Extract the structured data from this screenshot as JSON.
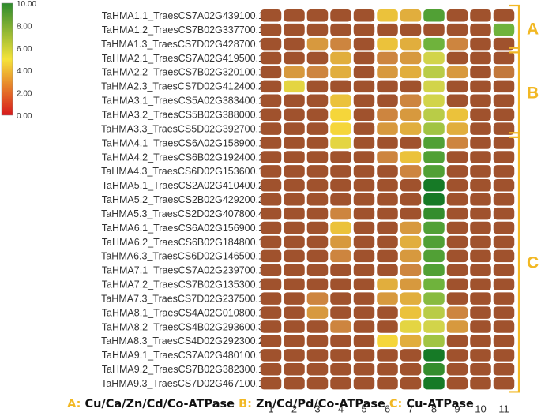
{
  "chart_data": {
    "type": "heatmap",
    "rows": [
      "TaHMA1.1_TraesCS7A02G439100.1",
      "TaHMA1.2_TraesCS7B02G337700.1",
      "TaHMA1.3_TraesCS7D02G428700.1",
      "TaHMA2.1_TraesCS7A02G419500.1",
      "TaHMA2.2_TraesCS7B02G320100.1",
      "TaHMA2.3_TraesCS7D02G412400.2",
      "TaHMA3.1_TraesCS5A02G383400.1",
      "TaHMA3.2_TraesCS5B02G388000.1",
      "TaHMA3.3_TraesCS5D02G392700.1",
      "TaHMA4.1_TraesCS6A02G158900.1",
      "TaHMA4.2_TraesCS6B02G192400.1",
      "TaHMA4.3_TraesCS6D02G153600.1",
      "TaHMA5.1_TraesCS2A02G410400.2",
      "TaHMA5.2_TraesCS2B02G429200.2",
      "TaHMA5.3_TraesCS2D02G407800.4",
      "TaHMA6.1_TraesCS6A02G156900.1",
      "TaHMA6.2_TraesCS6B02G184800.1",
      "TaHMA6.3_TraesCS6D02G146500.1",
      "TaHMA7.1_TraesCS7A02G239700.1",
      "TaHMA7.2_TraesCS7B02G135300.1",
      "TaHMA7.3_TraesCS7D02G237500.1",
      "TaHMA8.1_TraesCS4A02G010800.1",
      "TaHMA8.2_TraesCS4B02G293600.3",
      "TaHMA8.3_TraesCS4D02G292300.2",
      "TaHMA9.1_TraesCS7A02G480100.1",
      "TaHMA9.2_TraesCS7B02G382300.1",
      "TaHMA9.3_TraesCS7D02G467100.1"
    ],
    "columns": [
      "1",
      "2",
      "3",
      "4",
      "5",
      "6",
      "7",
      "8",
      "9",
      "10",
      "11"
    ],
    "values": [
      [
        1.0,
        1.0,
        1.0,
        1.0,
        1.0,
        4.5,
        4.0,
        8.5,
        1.0,
        1.0,
        1.0
      ],
      [
        1.0,
        1.0,
        1.0,
        1.0,
        1.0,
        1.0,
        1.0,
        1.0,
        1.0,
        1.0,
        8.0
      ],
      [
        1.0,
        1.0,
        3.5,
        3.0,
        1.0,
        4.5,
        4.0,
        8.0,
        3.0,
        1.0,
        1.0
      ],
      [
        1.0,
        1.0,
        1.0,
        4.0,
        1.0,
        3.0,
        3.5,
        6.0,
        1.0,
        1.0,
        1.0
      ],
      [
        1.0,
        3.5,
        3.0,
        4.0,
        1.0,
        3.5,
        4.0,
        6.5,
        3.5,
        1.0,
        2.5
      ],
      [
        1.0,
        5.5,
        1.0,
        1.0,
        1.0,
        1.0,
        1.0,
        6.0,
        1.0,
        1.0,
        1.0
      ],
      [
        1.0,
        1.0,
        1.0,
        4.5,
        1.0,
        1.0,
        3.0,
        6.0,
        1.0,
        1.0,
        1.0
      ],
      [
        1.0,
        1.0,
        1.0,
        5.0,
        1.0,
        3.0,
        3.5,
        6.5,
        4.5,
        1.0,
        1.0
      ],
      [
        1.0,
        1.0,
        1.0,
        5.0,
        1.0,
        3.5,
        4.0,
        7.0,
        4.0,
        1.0,
        1.0
      ],
      [
        1.0,
        1.0,
        1.0,
        5.5,
        1.0,
        1.0,
        1.0,
        8.5,
        3.0,
        1.0,
        1.0
      ],
      [
        1.0,
        1.0,
        1.0,
        1.0,
        1.0,
        3.0,
        4.5,
        8.5,
        1.0,
        1.0,
        1.0
      ],
      [
        1.0,
        1.0,
        1.0,
        1.0,
        1.0,
        1.0,
        3.0,
        8.5,
        1.0,
        1.0,
        1.0
      ],
      [
        1.0,
        1.0,
        1.0,
        1.0,
        1.0,
        1.0,
        1.0,
        9.5,
        1.0,
        1.0,
        1.0
      ],
      [
        1.0,
        1.0,
        1.0,
        1.0,
        1.0,
        1.0,
        1.0,
        9.5,
        1.0,
        1.0,
        1.0
      ],
      [
        1.0,
        1.0,
        1.0,
        3.0,
        1.0,
        1.0,
        1.0,
        9.0,
        1.0,
        1.0,
        1.0
      ],
      [
        1.0,
        1.0,
        1.0,
        4.5,
        1.0,
        1.0,
        3.5,
        8.5,
        1.0,
        1.0,
        1.0
      ],
      [
        1.0,
        1.0,
        1.0,
        3.5,
        1.0,
        1.0,
        4.0,
        8.5,
        1.0,
        1.0,
        1.0
      ],
      [
        1.0,
        1.0,
        1.0,
        3.0,
        1.0,
        1.0,
        3.5,
        8.5,
        1.0,
        1.0,
        1.0
      ],
      [
        1.0,
        1.0,
        1.0,
        1.0,
        1.0,
        1.0,
        3.0,
        8.5,
        1.0,
        1.0,
        1.0
      ],
      [
        1.0,
        1.0,
        1.0,
        1.0,
        1.0,
        4.0,
        3.5,
        8.0,
        1.0,
        1.0,
        1.0
      ],
      [
        1.0,
        1.0,
        3.0,
        1.0,
        1.0,
        3.5,
        4.0,
        7.5,
        1.0,
        1.0,
        1.0
      ],
      [
        1.0,
        1.0,
        3.5,
        1.0,
        1.0,
        1.0,
        4.5,
        6.5,
        3.0,
        1.0,
        1.0
      ],
      [
        1.0,
        1.0,
        1.0,
        3.0,
        1.0,
        1.0,
        5.5,
        6.0,
        3.5,
        1.0,
        1.0
      ],
      [
        1.0,
        1.0,
        1.0,
        1.0,
        1.0,
        5.0,
        4.0,
        7.0,
        1.0,
        1.0,
        1.0
      ],
      [
        1.0,
        1.0,
        1.0,
        1.0,
        1.0,
        1.0,
        1.0,
        9.5,
        1.0,
        1.0,
        1.0
      ],
      [
        1.0,
        1.0,
        1.0,
        1.0,
        1.0,
        1.0,
        1.0,
        9.0,
        1.0,
        1.0,
        1.0
      ],
      [
        1.0,
        1.0,
        1.0,
        1.0,
        1.0,
        1.0,
        1.0,
        9.5,
        1.0,
        1.0,
        1.0
      ]
    ],
    "color_scale": {
      "min": 0,
      "max": 10,
      "stops": [
        {
          "value": 0,
          "color": "#d7191c"
        },
        {
          "value": 5,
          "color": "#f5e33a"
        },
        {
          "value": 10,
          "color": "#2e8b2e"
        }
      ],
      "tick_labels": [
        "10.00",
        "8.00",
        "6.00",
        "4.00",
        "2.00",
        "0.00"
      ]
    },
    "cell_color_scale": [
      {
        "value": 1,
        "color": "#a0522d"
      },
      {
        "value": 3,
        "color": "#cd853f"
      },
      {
        "value": 5,
        "color": "#f5d63a"
      },
      {
        "value": 6,
        "color": "#d2d44a"
      },
      {
        "value": 8,
        "color": "#6fb33c"
      },
      {
        "value": 9.5,
        "color": "#167a26"
      }
    ],
    "groups": [
      {
        "label": "A",
        "first_row": 0,
        "last_row": 2
      },
      {
        "label": "B",
        "first_row": 3,
        "last_row": 8
      },
      {
        "label": "C",
        "first_row": 9,
        "last_row": 26
      }
    ],
    "group_color": "#f2b824"
  },
  "legend": {
    "a_key": "A:",
    "a_text": "Cu/Ca/Zn/Cd/Co-ATPase",
    "b_key": "B:",
    "b_text": "Zn/Cd/Pd/Co-ATPase",
    "c_key": "C:",
    "c_text": "Cu-ATPase"
  }
}
